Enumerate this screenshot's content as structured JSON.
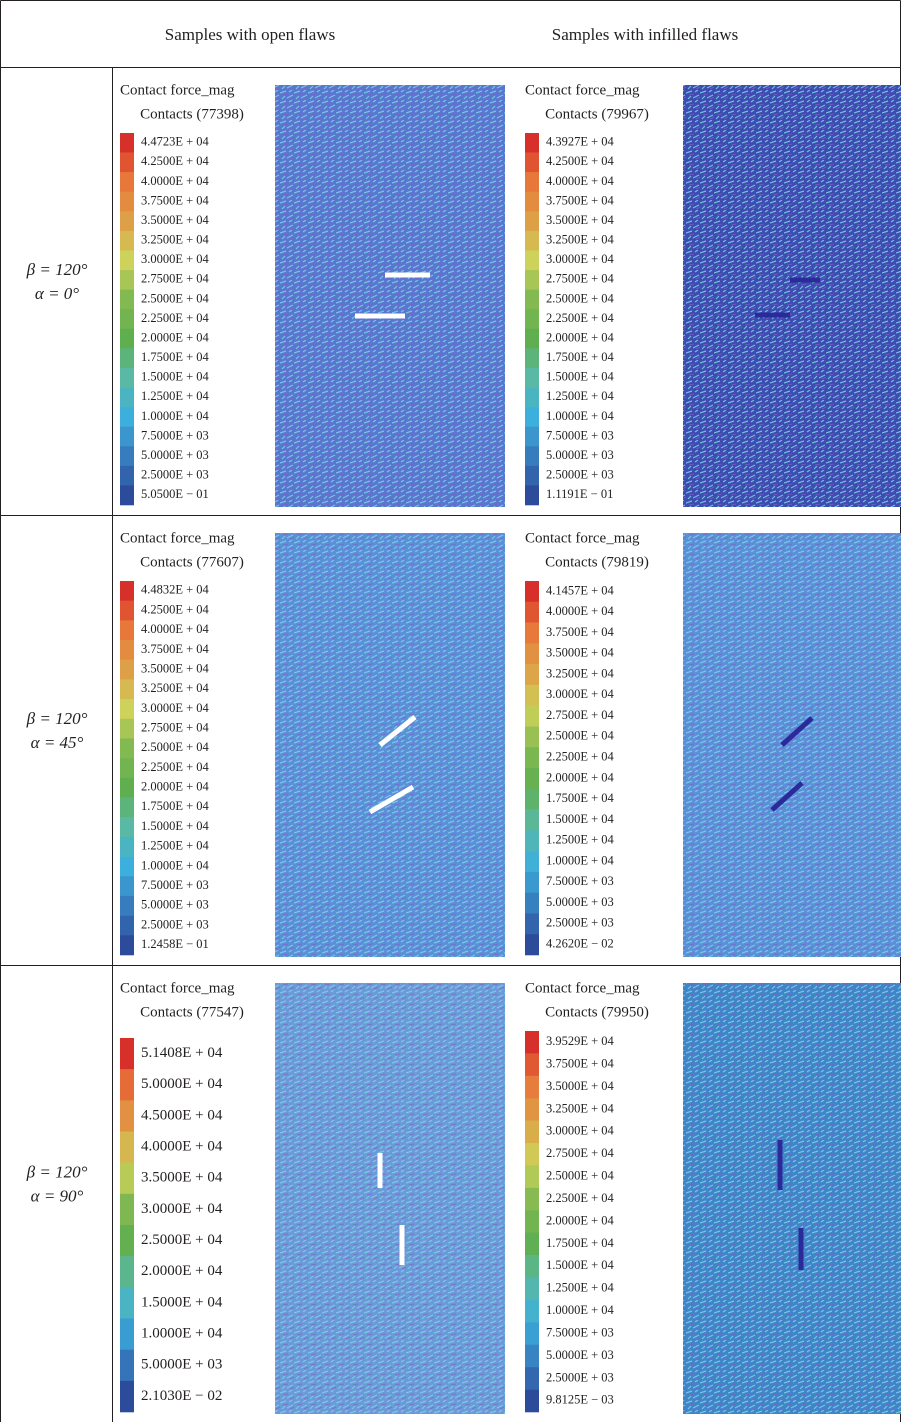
{
  "header": {
    "col1": "Samples with open flaws",
    "col2": "Samples with infilled flaws"
  },
  "rows": [
    {
      "beta": "β = 120°",
      "alpha": "α = 0°",
      "open": {
        "title": "Contact force_mag",
        "contacts": "Contacts (77398)",
        "labels": [
          "4.4723E + 04",
          "4.2500E + 04",
          "4.0000E + 04",
          "3.7500E + 04",
          "3.5000E + 04",
          "3.2500E + 04",
          "3.0000E + 04",
          "2.7500E + 04",
          "2.5000E + 04",
          "2.2500E + 04",
          "2.0000E + 04",
          "1.7500E + 04",
          "1.5000E + 04",
          "1.2500E + 04",
          "1.0000E + 04",
          "7.5000E + 03",
          "5.0000E + 03",
          "2.5000E + 03",
          "5.0500E − 01"
        ]
      },
      "infilled": {
        "title": "Contact force_mag",
        "contacts": "Contacts (79967)",
        "labels": [
          "4.3927E + 04",
          "4.2500E + 04",
          "4.0000E + 04",
          "3.7500E + 04",
          "3.5000E + 04",
          "3.2500E + 04",
          "3.0000E + 04",
          "2.7500E + 04",
          "2.5000E + 04",
          "2.2500E + 04",
          "2.0000E + 04",
          "1.7500E + 04",
          "1.5000E + 04",
          "1.2500E + 04",
          "1.0000E + 04",
          "7.5000E + 03",
          "5.0000E + 03",
          "2.5000E + 03",
          "1.1191E − 01"
        ]
      }
    },
    {
      "beta": "β = 120°",
      "alpha": "α = 45°",
      "open": {
        "title": "Contact force_mag",
        "contacts": "Contacts (77607)",
        "labels": [
          "4.4832E + 04",
          "4.2500E + 04",
          "4.0000E + 04",
          "3.7500E + 04",
          "3.5000E + 04",
          "3.2500E + 04",
          "3.0000E + 04",
          "2.7500E + 04",
          "2.5000E + 04",
          "2.2500E + 04",
          "2.0000E + 04",
          "1.7500E + 04",
          "1.5000E + 04",
          "1.2500E + 04",
          "1.0000E + 04",
          "7.5000E + 03",
          "5.0000E + 03",
          "2.5000E + 03",
          "1.2458E − 01"
        ]
      },
      "infilled": {
        "title": "Contact force_mag",
        "contacts": "Contacts (79819)",
        "labels": [
          "4.1457E + 04",
          "4.0000E + 04",
          "3.7500E + 04",
          "3.5000E + 04",
          "3.2500E + 04",
          "3.0000E + 04",
          "2.7500E + 04",
          "2.5000E + 04",
          "2.2500E + 04",
          "2.0000E + 04",
          "1.7500E + 04",
          "1.5000E + 04",
          "1.2500E + 04",
          "1.0000E + 04",
          "7.5000E + 03",
          "5.0000E + 03",
          "2.5000E + 03",
          "4.2620E − 02"
        ]
      }
    },
    {
      "beta": "β = 120°",
      "alpha": "α = 90°",
      "open": {
        "title": "Contact force_mag",
        "contacts": "Contacts (77547)",
        "labels": [
          "5.1408E + 04",
          "5.0000E + 04",
          "4.5000E + 04",
          "4.0000E + 04",
          "3.5000E + 04",
          "3.0000E + 04",
          "2.5000E + 04",
          "2.0000E + 04",
          "1.5000E + 04",
          "1.0000E + 04",
          "5.0000E + 03",
          "2.1030E − 02"
        ]
      },
      "infilled": {
        "title": "Contact force_mag",
        "contacts": "Contacts (79950)",
        "labels": [
          "3.9529E + 04",
          "3.7500E + 04",
          "3.5000E + 04",
          "3.2500E + 04",
          "3.0000E + 04",
          "2.7500E + 04",
          "2.5000E + 04",
          "2.2500E + 04",
          "2.0000E + 04",
          "1.7500E + 04",
          "1.5000E + 04",
          "1.2500E + 04",
          "1.0000E + 04",
          "7.5000E + 03",
          "5.0000E + 03",
          "2.5000E + 03",
          "9.8125E − 03"
        ]
      }
    }
  ]
}
